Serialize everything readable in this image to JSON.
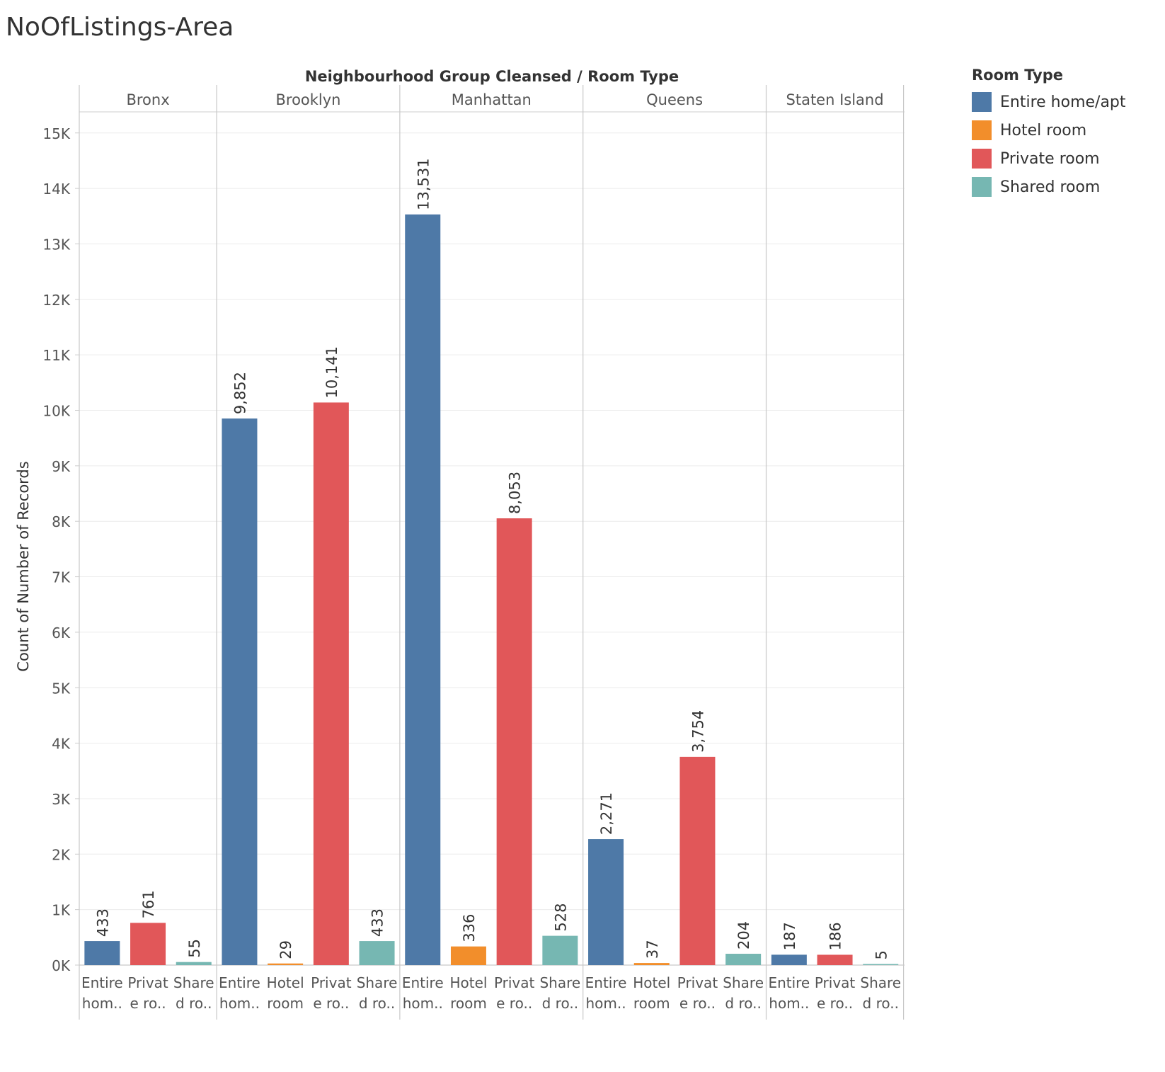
{
  "title": "NoOfListings-Area",
  "chart_data": {
    "type": "bar",
    "title": "NoOfListings-Area",
    "column_header": "Neighbourhood Group Cleansed  /  Room Type",
    "ylabel": "Count of Number of Records",
    "ylim": [
      0,
      15500
    ],
    "yticks": [
      0,
      1000,
      2000,
      3000,
      4000,
      5000,
      6000,
      7000,
      8000,
      9000,
      10000,
      11000,
      12000,
      13000,
      14000,
      15000
    ],
    "ytick_labels": [
      "0K",
      "1K",
      "2K",
      "3K",
      "4K",
      "5K",
      "6K",
      "7K",
      "8K",
      "9K",
      "10K",
      "11K",
      "12K",
      "13K",
      "14K",
      "15K"
    ],
    "grid": true,
    "legend": {
      "title": "Room Type",
      "placement": "right",
      "entries": [
        {
          "name": "Entire home/apt",
          "color": "#4e79a7"
        },
        {
          "name": "Hotel room",
          "color": "#f28e2b"
        },
        {
          "name": "Private room",
          "color": "#e15759"
        },
        {
          "name": "Shared room",
          "color": "#76b7b2"
        }
      ]
    },
    "groups": [
      {
        "name": "Bronx",
        "bars": [
          {
            "type": "Entire home/apt",
            "label_lines": [
              "Entire",
              "hom.."
            ],
            "value": 433,
            "value_label": "433"
          },
          {
            "type": "Private room",
            "label_lines": [
              "Privat",
              "e ro.."
            ],
            "value": 761,
            "value_label": "761"
          },
          {
            "type": "Shared room",
            "label_lines": [
              "Share",
              "d ro.."
            ],
            "value": 55,
            "value_label": "55"
          }
        ]
      },
      {
        "name": "Brooklyn",
        "bars": [
          {
            "type": "Entire home/apt",
            "label_lines": [
              "Entire",
              "hom.."
            ],
            "value": 9852,
            "value_label": "9,852"
          },
          {
            "type": "Hotel room",
            "label_lines": [
              "Hotel",
              "room"
            ],
            "value": 29,
            "value_label": "29"
          },
          {
            "type": "Private room",
            "label_lines": [
              "Privat",
              "e ro.."
            ],
            "value": 10141,
            "value_label": "10,141"
          },
          {
            "type": "Shared room",
            "label_lines": [
              "Share",
              "d ro.."
            ],
            "value": 433,
            "value_label": "433"
          }
        ]
      },
      {
        "name": "Manhattan",
        "bars": [
          {
            "type": "Entire home/apt",
            "label_lines": [
              "Entire",
              "hom.."
            ],
            "value": 13531,
            "value_label": "13,531"
          },
          {
            "type": "Hotel room",
            "label_lines": [
              "Hotel",
              "room"
            ],
            "value": 336,
            "value_label": "336"
          },
          {
            "type": "Private room",
            "label_lines": [
              "Privat",
              "e ro.."
            ],
            "value": 8053,
            "value_label": "8,053"
          },
          {
            "type": "Shared room",
            "label_lines": [
              "Share",
              "d ro.."
            ],
            "value": 528,
            "value_label": "528"
          }
        ]
      },
      {
        "name": "Queens",
        "bars": [
          {
            "type": "Entire home/apt",
            "label_lines": [
              "Entire",
              "hom.."
            ],
            "value": 2271,
            "value_label": "2,271"
          },
          {
            "type": "Hotel room",
            "label_lines": [
              "Hotel",
              "room"
            ],
            "value": 37,
            "value_label": "37"
          },
          {
            "type": "Private room",
            "label_lines": [
              "Privat",
              "e ro.."
            ],
            "value": 3754,
            "value_label": "3,754"
          },
          {
            "type": "Shared room",
            "label_lines": [
              "Share",
              "d ro.."
            ],
            "value": 204,
            "value_label": "204"
          }
        ]
      },
      {
        "name": "Staten Island",
        "bars": [
          {
            "type": "Entire home/apt",
            "label_lines": [
              "Entire",
              "hom.."
            ],
            "value": 187,
            "value_label": "187"
          },
          {
            "type": "Private room",
            "label_lines": [
              "Privat",
              "e ro.."
            ],
            "value": 186,
            "value_label": "186"
          },
          {
            "type": "Shared room",
            "label_lines": [
              "Share",
              "d ro.."
            ],
            "value": 5,
            "value_label": "5"
          }
        ]
      }
    ]
  }
}
